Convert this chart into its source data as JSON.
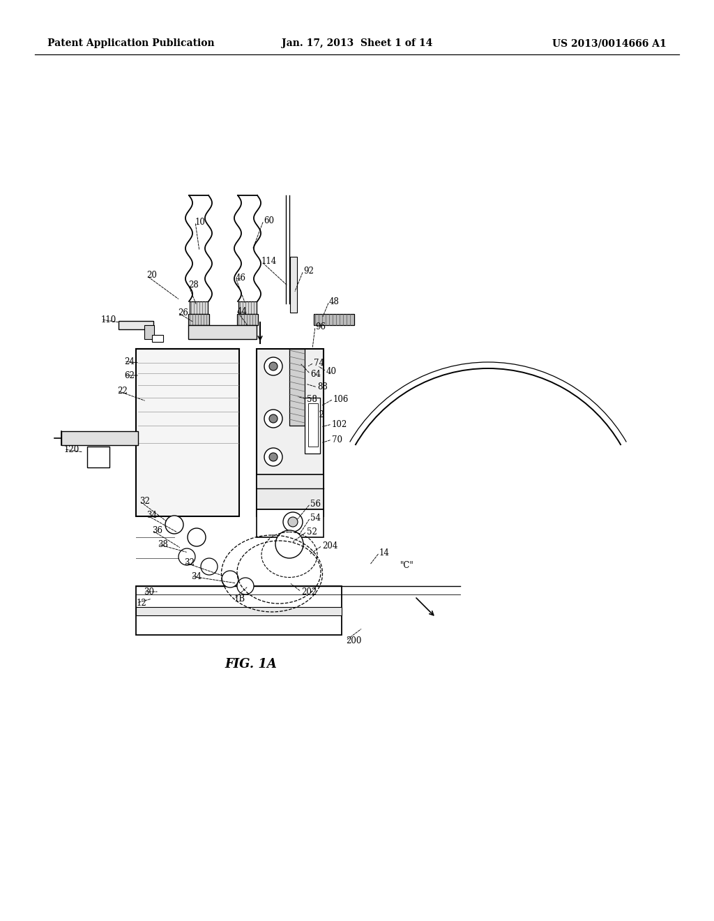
{
  "bg_color": "#ffffff",
  "header_left": "Patent Application Publication",
  "header_mid": "Jan. 17, 2013  Sheet 1 of 14",
  "header_right": "US 2013/0014666 A1",
  "fig_label": "FIG. 1A"
}
